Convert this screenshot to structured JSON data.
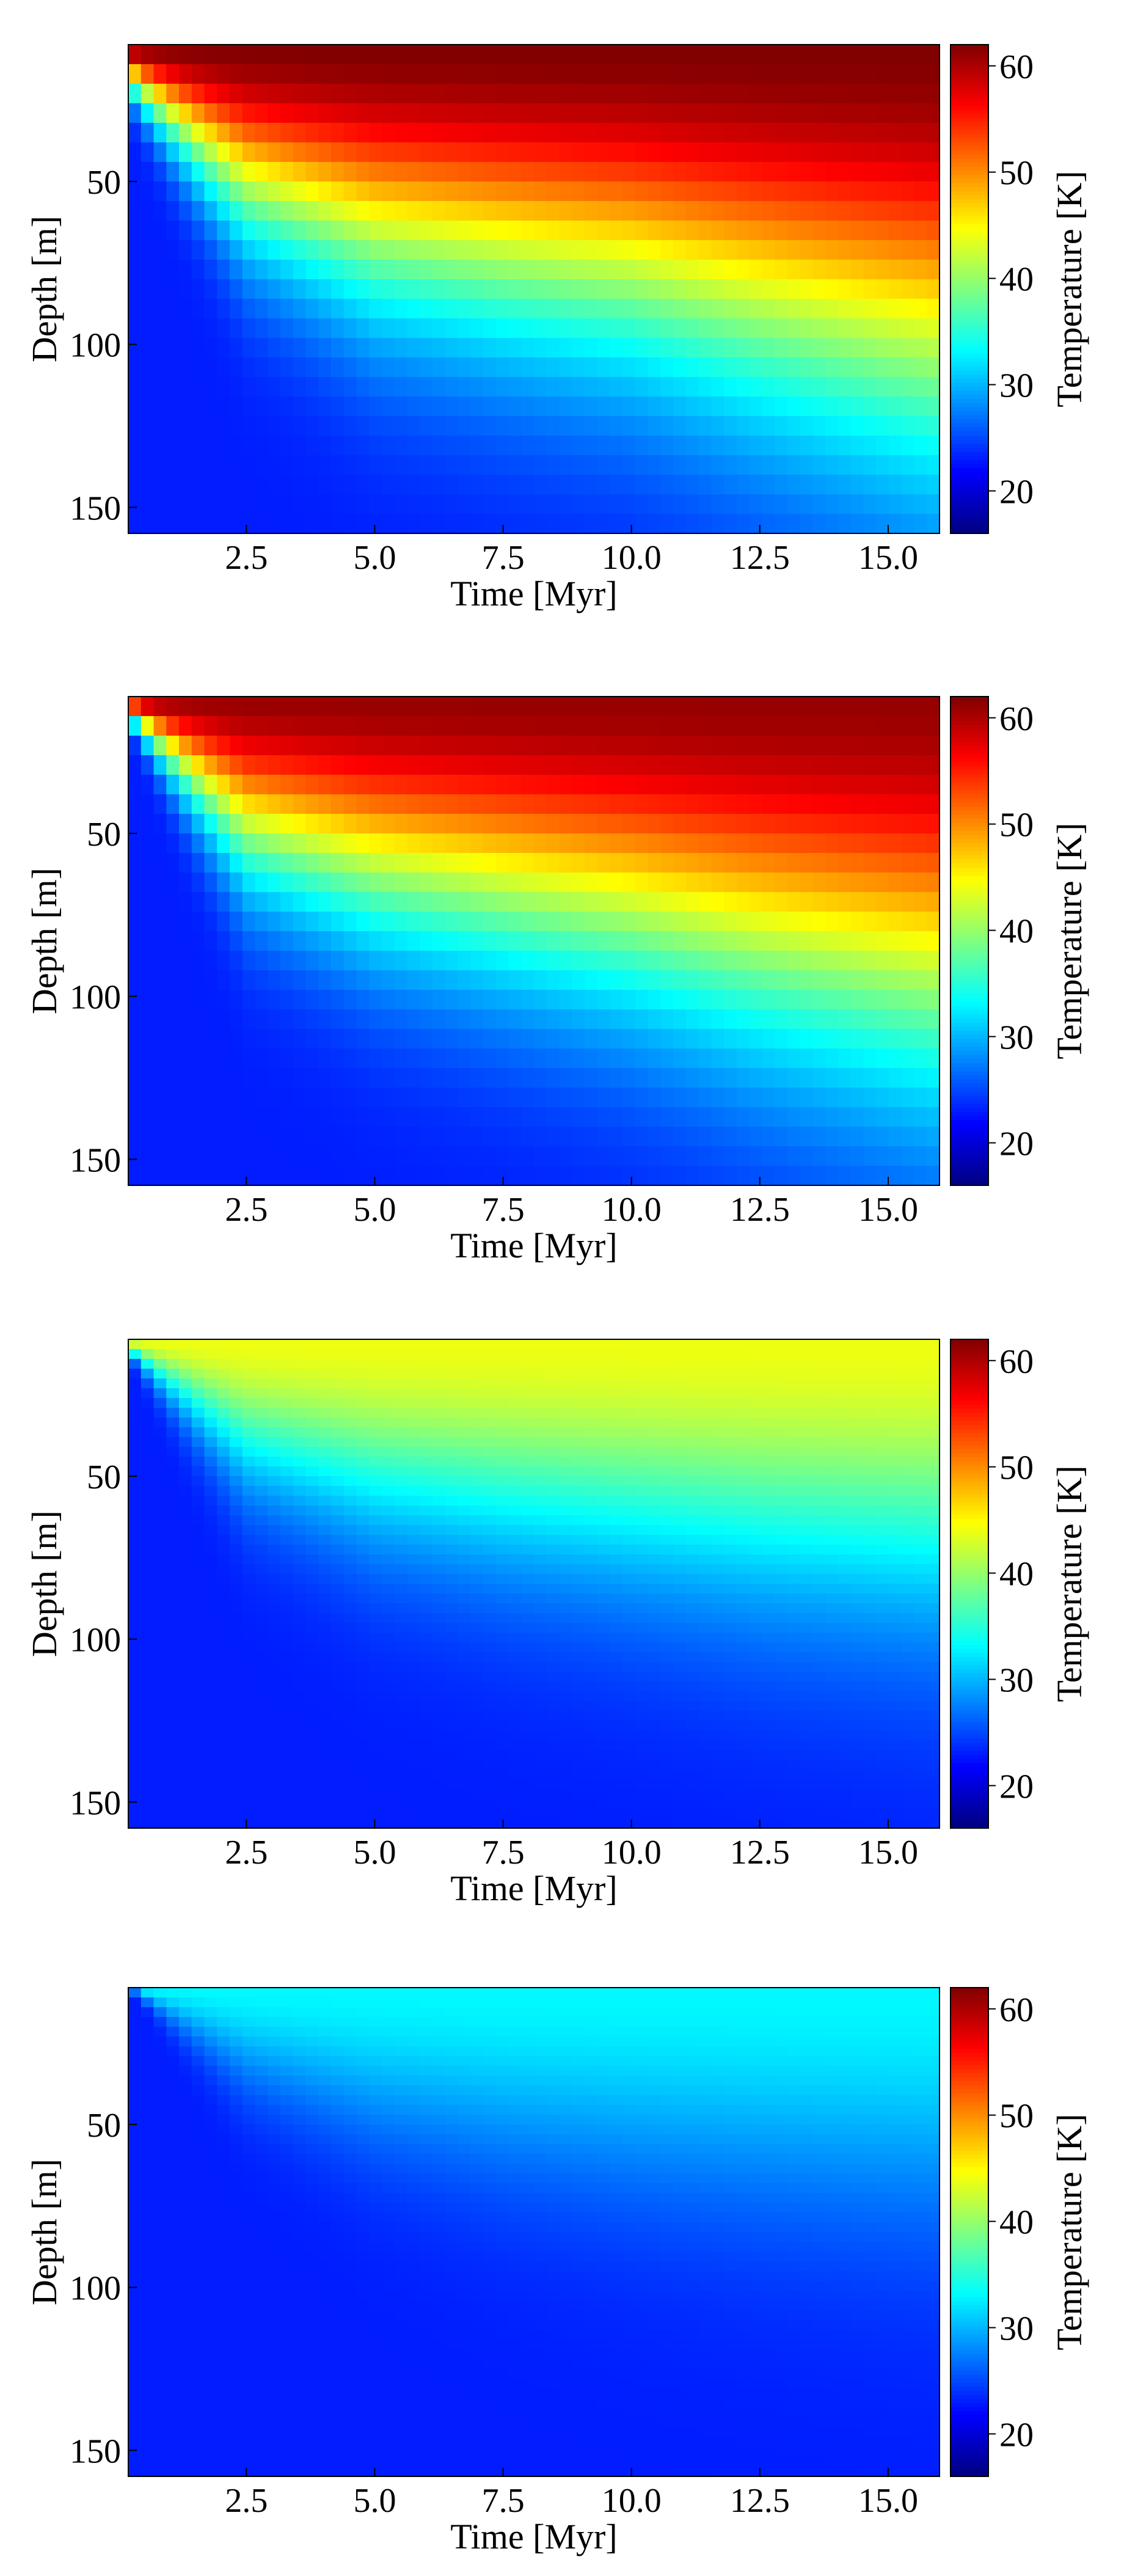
{
  "chart_data": [
    {
      "type": "heatmap",
      "panel": 1,
      "xlabel": "Time [Myr]",
      "ylabel": "Depth [m]",
      "xticks": [
        2.5,
        5.0,
        7.5,
        10.0,
        12.5,
        15.0
      ],
      "xtick_labels": [
        "2.5",
        "5.0",
        "7.5",
        "10.0",
        "12.5",
        "15.0"
      ],
      "yticks": [
        50,
        100,
        150
      ],
      "ytick_labels": [
        "50",
        "100",
        "150"
      ],
      "xlim": [
        0.2,
        16.0
      ],
      "ylim": [
        158,
        8
      ],
      "colorbar": {
        "label": "Temperature [K]",
        "range": [
          16,
          62
        ],
        "ticks": [
          20,
          30,
          40,
          50,
          60
        ],
        "tick_labels": [
          "20",
          "30",
          "40",
          "50",
          "60"
        ],
        "colormap": "jet"
      },
      "surface_temperature_K": 62,
      "deep_temperature_K": 23,
      "front_depth_m": {
        "t": [
          0.2,
          2.5,
          5.0,
          7.5,
          10.0,
          12.5,
          16.0
        ],
        "depth": [
          22,
          65,
          85,
          93,
          100,
          113,
          130
        ]
      },
      "stepped": true
    },
    {
      "type": "heatmap",
      "panel": 2,
      "xlabel": "Time [Myr]",
      "ylabel": "Depth [m]",
      "xticks": [
        2.5,
        5.0,
        7.5,
        10.0,
        12.5,
        15.0
      ],
      "xtick_labels": [
        "2.5",
        "5.0",
        "7.5",
        "10.0",
        "12.5",
        "15.0"
      ],
      "yticks": [
        50,
        100,
        150
      ],
      "ytick_labels": [
        "50",
        "100",
        "150"
      ],
      "xlim": [
        0.2,
        16.0
      ],
      "ylim": [
        158,
        8
      ],
      "colorbar": {
        "label": "Temperature [K]",
        "range": [
          16,
          62
        ],
        "ticks": [
          20,
          30,
          40,
          50,
          60
        ],
        "tick_labels": [
          "20",
          "30",
          "40",
          "50",
          "60"
        ],
        "colormap": "jet"
      },
      "surface_temperature_K": 61,
      "deep_temperature_K": 23,
      "front_depth_m": {
        "t": [
          0.2,
          2.5,
          5.0,
          7.5,
          10.0,
          12.5,
          16.0
        ],
        "depth": [
          15,
          62,
          78,
          87,
          96,
          108,
          122
        ]
      },
      "stepped": true
    },
    {
      "type": "heatmap",
      "panel": 3,
      "xlabel": "Time [Myr]",
      "ylabel": "Depth [m]",
      "xticks": [
        2.5,
        5.0,
        7.5,
        10.0,
        12.5,
        15.0
      ],
      "xtick_labels": [
        "2.5",
        "5.0",
        "7.5",
        "10.0",
        "12.5",
        "15.0"
      ],
      "yticks": [
        50,
        100,
        150
      ],
      "ytick_labels": [
        "50",
        "100",
        "150"
      ],
      "xlim": [
        0.2,
        16.0
      ],
      "ylim": [
        158,
        8
      ],
      "colorbar": {
        "label": "Temperature [K]",
        "range": [
          16,
          62
        ],
        "ticks": [
          20,
          30,
          40,
          50,
          60
        ],
        "tick_labels": [
          "20",
          "30",
          "40",
          "50",
          "60"
        ],
        "colormap": "jet"
      },
      "surface_temperature_K": 44,
      "deep_temperature_K": 23,
      "front_depth_m": {
        "t": [
          0.2,
          2.5,
          5.0,
          7.5,
          10.0,
          12.5,
          16.0
        ],
        "depth": [
          12,
          52,
          68,
          76,
          82,
          88,
          94
        ]
      },
      "stepped": false
    },
    {
      "type": "heatmap",
      "panel": 4,
      "xlabel": "Time [Myr]",
      "ylabel": "Depth [m]",
      "xticks": [
        2.5,
        5.0,
        7.5,
        10.0,
        12.5,
        15.0
      ],
      "xtick_labels": [
        "2.5",
        "5.0",
        "7.5",
        "10.0",
        "12.5",
        "15.0"
      ],
      "yticks": [
        50,
        100,
        150
      ],
      "ytick_labels": [
        "50",
        "100",
        "150"
      ],
      "xlim": [
        0.2,
        16.0
      ],
      "ylim": [
        158,
        8
      ],
      "colorbar": {
        "label": "Temperature [K]",
        "range": [
          16,
          62
        ],
        "ticks": [
          20,
          30,
          40,
          50,
          60
        ],
        "tick_labels": [
          "20",
          "30",
          "40",
          "50",
          "60"
        ],
        "colormap": "jet"
      },
      "surface_temperature_K": 33,
      "deep_temperature_K": 23,
      "front_depth_m": {
        "t": [
          0.2,
          2.5,
          5.0,
          7.5,
          10.0,
          12.5,
          16.0
        ],
        "depth": [
          8,
          40,
          58,
          68,
          75,
          80,
          86
        ]
      },
      "stepped": false
    }
  ]
}
